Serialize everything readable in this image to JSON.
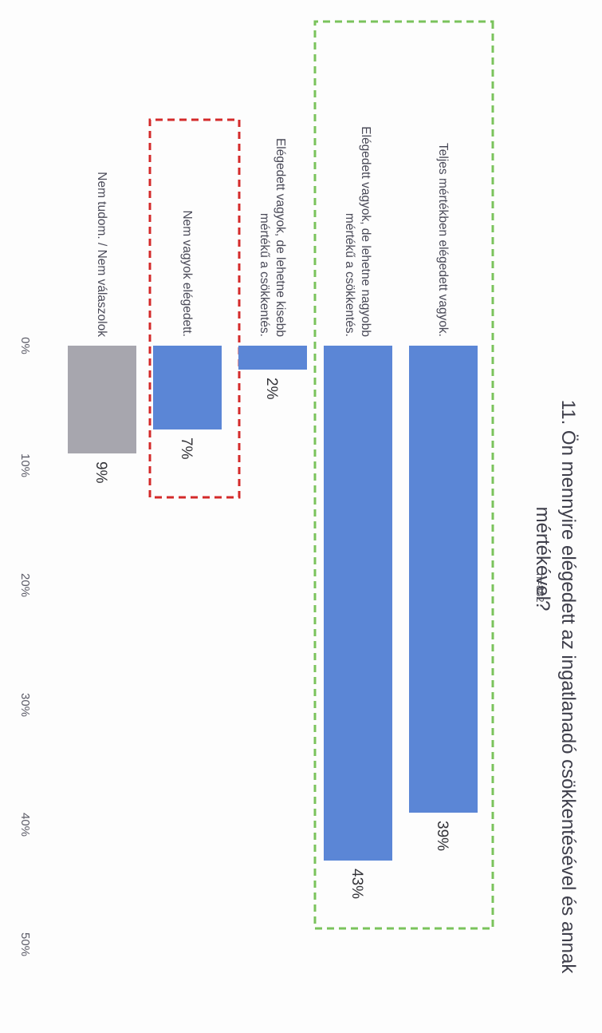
{
  "chart_data": {
    "type": "bar",
    "orientation": "horizontal",
    "title_lines": [
      "11. Ön mennyire elégedett az ingatlanadó csökkentésével és annak",
      "mértékével?"
    ],
    "sample_size": "n=882",
    "categories": [
      "Teljes mértékben elégedett vagyok.",
      "Elégedett vagyok, de lehetne nagyobb mértékű a csökkentés.",
      "Elégedett vagyok, de lehetne kisebb mértékű a csökkentés.",
      "Nem vagyok elégedett.",
      "Nem tudom. / Nem válaszolok"
    ],
    "category_lines": [
      [
        "Teljes mértékben elégedett vagyok."
      ],
      [
        "Elégedett vagyok, de lehetne nagyobb",
        "mértékű a csökkentés."
      ],
      [
        "Elégedett vagyok, de lehetne kisebb",
        "mértékű a csökkentés."
      ],
      [
        "Nem vagyok elégedett."
      ],
      [
        "Nem tudom. / Nem válaszolok"
      ]
    ],
    "values": [
      39,
      43,
      2,
      7,
      9
    ],
    "value_labels": [
      "39%",
      "43%",
      "2%",
      "7%",
      "9%"
    ],
    "bar_colors": [
      "#5b86d6",
      "#5b86d6",
      "#5b86d6",
      "#5b86d6",
      "#a7a6ae"
    ],
    "xlim": [
      0,
      50
    ],
    "x_ticks": [
      0,
      10,
      20,
      30,
      40,
      50
    ],
    "x_tick_labels": [
      "0%",
      "10%",
      "20%",
      "30%",
      "40%",
      "50%"
    ],
    "grid": false,
    "highlight_boxes": [
      {
        "categories": [
          0,
          1
        ],
        "style": "dashed",
        "color": "#7ac35c"
      },
      {
        "categories": [
          3
        ],
        "style": "dashed",
        "color": "#d42a2a"
      }
    ]
  }
}
